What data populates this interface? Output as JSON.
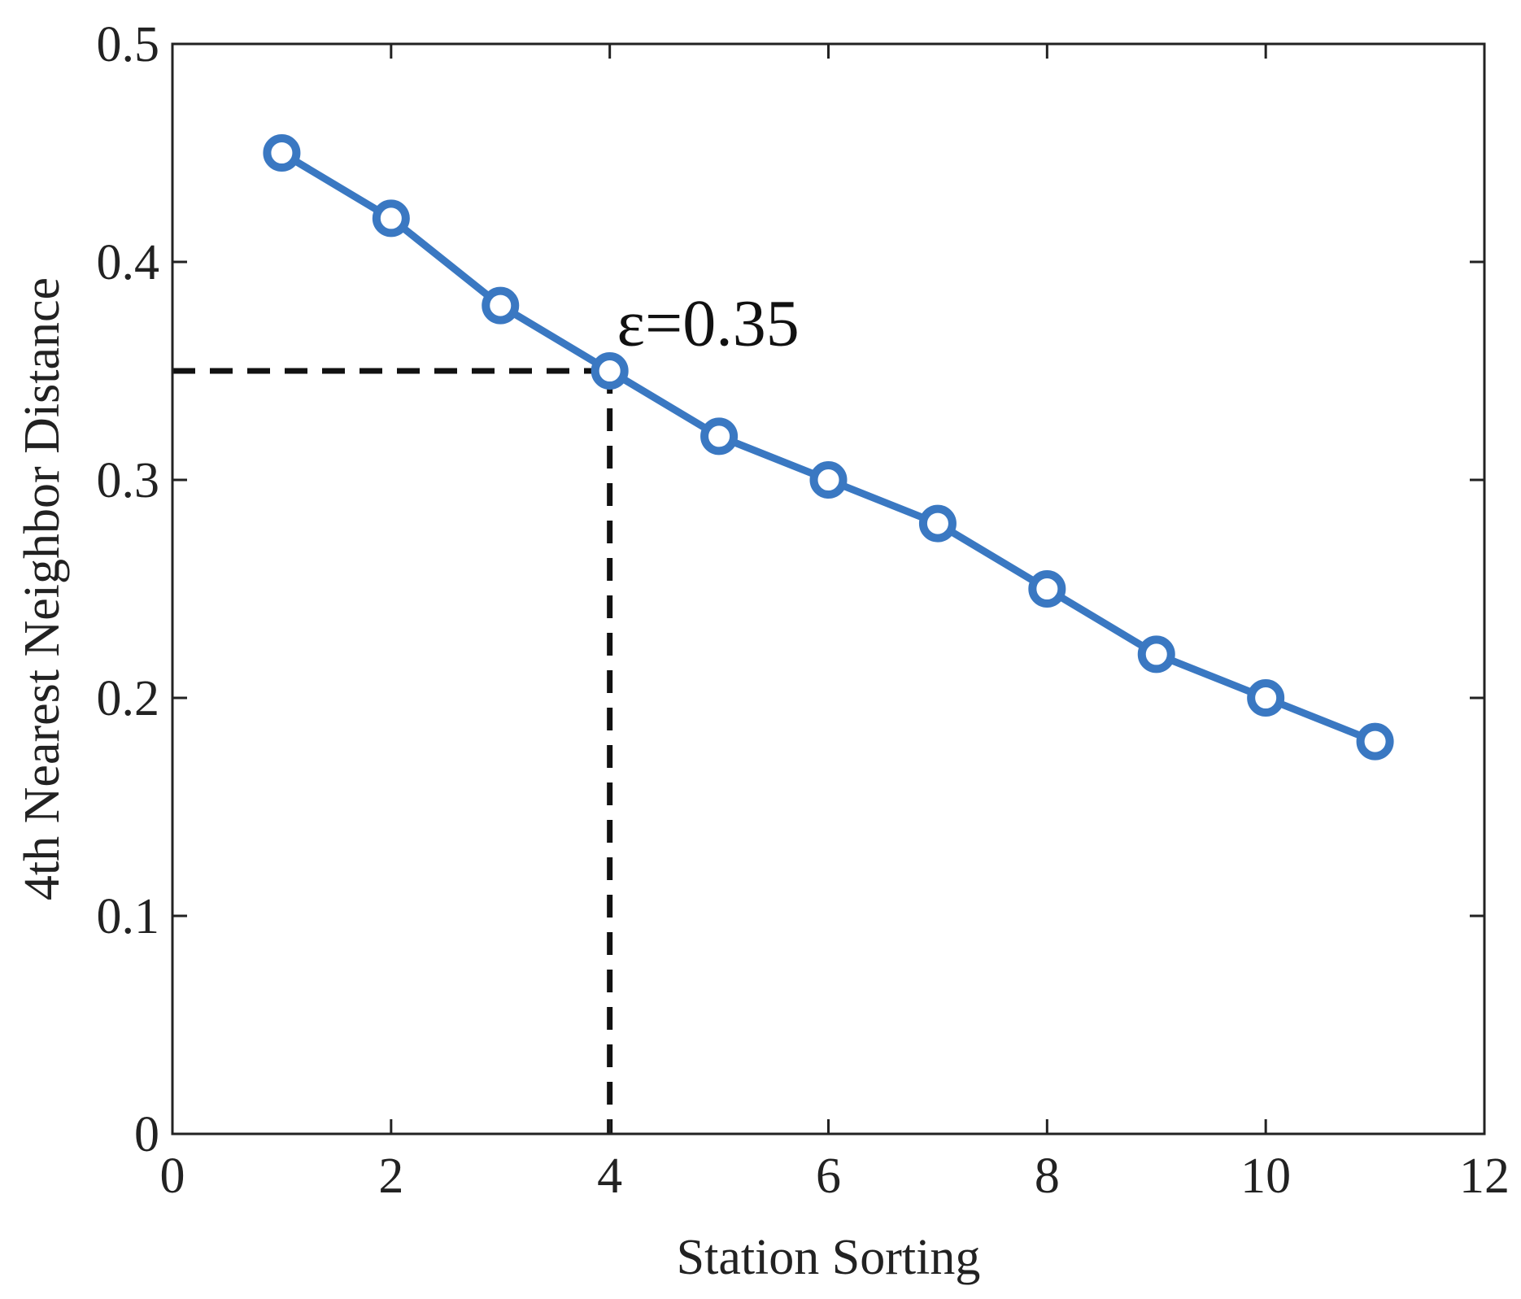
{
  "chart_data": {
    "type": "line",
    "title": "",
    "xlabel": "Station Sorting",
    "ylabel": "4th Nearest Neighbor Distance",
    "xlim": [
      0,
      12
    ],
    "ylim": [
      0,
      0.5
    ],
    "xticks": [
      0,
      2,
      4,
      6,
      8,
      10,
      12
    ],
    "xtick_labels": [
      "0",
      "2",
      "4",
      "6",
      "8",
      "10",
      "12"
    ],
    "yticks": [
      0,
      0.1,
      0.2,
      0.3,
      0.4,
      0.5
    ],
    "ytick_labels": [
      "0",
      "0.1",
      "0.2",
      "0.3",
      "0.4",
      "0.5"
    ],
    "grid": false,
    "series": [
      {
        "x": [
          1,
          2,
          3,
          4,
          5,
          6,
          7,
          8,
          9,
          10,
          11
        ],
        "values": [
          0.45,
          0.42,
          0.38,
          0.35,
          0.32,
          0.3,
          0.28,
          0.25,
          0.22,
          0.2,
          0.18
        ],
        "color": "#3a78c2",
        "marker": "circle"
      }
    ],
    "reference_lines": {
      "x": 4,
      "y": 0.35,
      "style": "dashed",
      "color": "#111111"
    },
    "annotation": {
      "text": "ε=0.35",
      "x": 4.2,
      "y": 0.37
    }
  }
}
